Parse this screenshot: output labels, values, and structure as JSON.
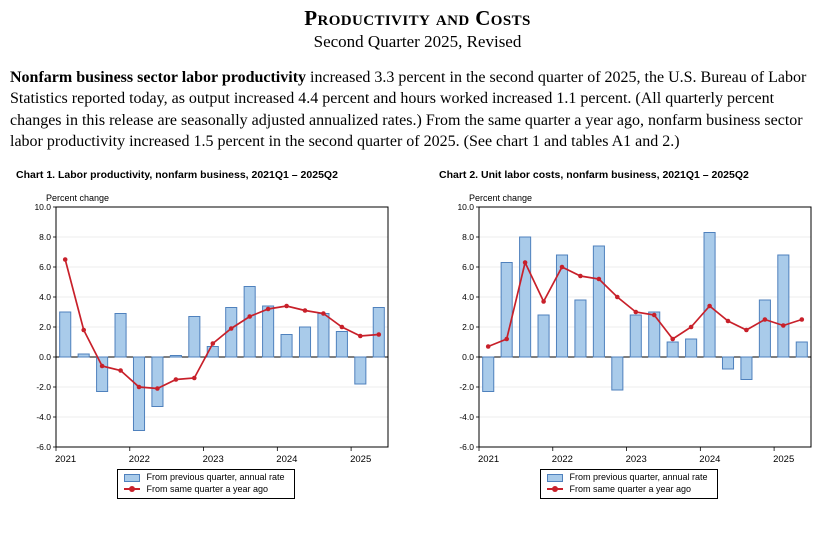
{
  "header": {
    "title": "Productivity and Costs",
    "subtitle": "Second Quarter 2025, Revised"
  },
  "summary": {
    "lead": "Nonfarm business sector labor productivity",
    "body": " increased 3.3 percent in the second quarter of 2025, the U.S. Bureau of Labor Statistics reported today, as output increased 4.4 percent and hours worked increased 1.1 percent. (All quarterly percent changes in this release are seasonally adjusted annualized rates.) From the same quarter a year ago, nonfarm business sector labor productivity increased 1.5 percent in the second quarter of 2025. (See chart 1 and tables A1 and 2.)"
  },
  "colors": {
    "bar_fill": "#A9CBEA",
    "bar_stroke": "#4F81BD",
    "line": "#C8202A",
    "grid": "#DCDCDC",
    "axis": "#000000"
  },
  "chart_data": [
    {
      "type": "bar",
      "title": "Chart 1. Labor productivity, nonfarm business, 2021Q1 – 2025Q2",
      "ylabel": "Percent change",
      "ylim": [
        -6.0,
        10.0
      ],
      "ytick_step": 2.0,
      "grid": true,
      "legend_position": "bottom",
      "x_year_labels": [
        "2021",
        "2022",
        "2023",
        "2024",
        "2025"
      ],
      "categories": [
        "2021Q1",
        "2021Q2",
        "2021Q3",
        "2021Q4",
        "2022Q1",
        "2022Q2",
        "2022Q3",
        "2022Q4",
        "2023Q1",
        "2023Q2",
        "2023Q3",
        "2023Q4",
        "2024Q1",
        "2024Q2",
        "2024Q3",
        "2024Q4",
        "2025Q1",
        "2025Q2"
      ],
      "series": [
        {
          "name": "From previous quarter, annual rate",
          "type": "bar",
          "values": [
            3.0,
            0.2,
            -2.3,
            2.9,
            -4.9,
            -3.3,
            0.1,
            2.7,
            0.7,
            3.3,
            4.7,
            3.4,
            1.5,
            2.0,
            2.9,
            1.7,
            -1.8,
            3.3
          ]
        },
        {
          "name": "From same quarter a year ago",
          "type": "line",
          "values": [
            6.5,
            1.8,
            -0.6,
            -0.9,
            -2.0,
            -2.1,
            -1.5,
            -1.4,
            0.9,
            1.9,
            2.7,
            3.2,
            3.4,
            3.1,
            2.9,
            2.0,
            1.4,
            1.5
          ]
        }
      ]
    },
    {
      "type": "bar",
      "title": "Chart 2. Unit labor costs, nonfarm business, 2021Q1 – 2025Q2",
      "ylabel": "Percent change",
      "ylim": [
        -6.0,
        10.0
      ],
      "ytick_step": 2.0,
      "grid": true,
      "legend_position": "bottom",
      "x_year_labels": [
        "2021",
        "2022",
        "2023",
        "2024",
        "2025"
      ],
      "categories": [
        "2021Q1",
        "2021Q2",
        "2021Q3",
        "2021Q4",
        "2022Q1",
        "2022Q2",
        "2022Q3",
        "2022Q4",
        "2023Q1",
        "2023Q2",
        "2023Q3",
        "2023Q4",
        "2024Q1",
        "2024Q2",
        "2024Q3",
        "2024Q4",
        "2025Q1",
        "2025Q2"
      ],
      "series": [
        {
          "name": "From previous quarter, annual rate",
          "type": "bar",
          "values": [
            -2.3,
            6.3,
            8.0,
            2.8,
            6.8,
            3.8,
            7.4,
            -2.2,
            2.8,
            3.0,
            1.0,
            1.2,
            8.3,
            -0.8,
            -1.5,
            3.8,
            6.8,
            1.0
          ]
        },
        {
          "name": "From same quarter a year ago",
          "type": "line",
          "values": [
            0.7,
            1.2,
            6.3,
            3.7,
            6.0,
            5.4,
            5.2,
            4.0,
            3.0,
            2.8,
            1.2,
            2.0,
            3.4,
            2.4,
            1.8,
            2.5,
            2.1,
            2.5
          ]
        }
      ]
    }
  ]
}
